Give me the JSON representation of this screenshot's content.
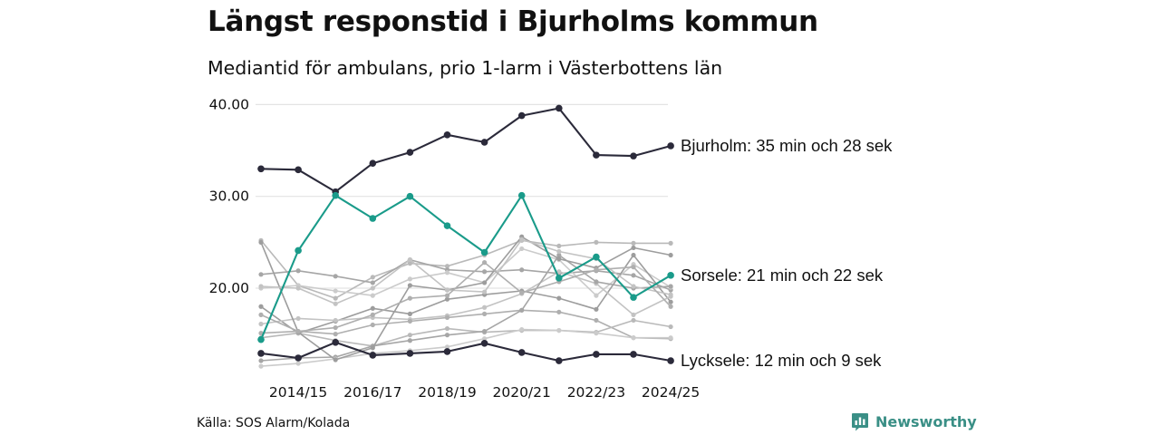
{
  "header": {
    "title": "Längst responstid i Bjurholms kommun",
    "subtitle": "Mediantid för ambulans, prio 1-larm i Västerbottens län"
  },
  "footer": {
    "source": "Källa: SOS Alarm/Kolada",
    "brand": "Newsworthy",
    "brand_icon": "newsworthy-logo-icon"
  },
  "colors": {
    "highlight_dark": "#2b2a3a",
    "highlight_teal": "#1a9b8a",
    "background_lines": [
      "#b9b9b9",
      "#a6a6a6",
      "#cbcbcb",
      "#9d9d9d",
      "#c3c3c3",
      "#afafaf"
    ],
    "grid": "#e3e3e3",
    "brand": "#3a8f86"
  },
  "chart_data": {
    "type": "line",
    "title": "Längst responstid i Bjurholms kommun",
    "subtitle": "Mediantid för ambulans, prio 1-larm i Västerbottens län",
    "xlabel": "",
    "ylabel": "",
    "x": [
      "2013/14",
      "2014/15",
      "2015/16",
      "2016/17",
      "2017/18",
      "2018/19",
      "2019/20",
      "2020/21",
      "2021/22",
      "2022/23",
      "2023/24",
      "2024/25"
    ],
    "x_tick_labels": [
      "2014/15",
      "2016/17",
      "2018/19",
      "2020/21",
      "2022/23",
      "2024/25"
    ],
    "y_ticks": [
      20,
      30,
      40
    ],
    "y_tick_labels": [
      "20.00",
      "30.00",
      "40.00"
    ],
    "ylim": [
      11,
      40.3
    ],
    "grid": true,
    "legend": "direct labels at line ends",
    "highlighted": [
      {
        "name": "Bjurholm",
        "label": "Bjurholm: 35 min och 28 sek",
        "color": "#2b2a3a",
        "values": [
          33.0,
          32.9,
          30.5,
          33.6,
          34.8,
          36.7,
          35.9,
          38.8,
          39.6,
          34.5,
          34.4,
          35.5
        ]
      },
      {
        "name": "Sorsele",
        "label": "Sorsele: 21 min och 22 sek",
        "color": "#1a9b8a",
        "values": [
          14.4,
          24.1,
          30.1,
          27.6,
          30.0,
          26.8,
          23.9,
          30.1,
          21.1,
          23.4,
          19.0,
          21.4
        ]
      },
      {
        "name": "Lycksele",
        "label": "Lycksele: 12 min och 9 sek",
        "color": "#2b2a3a",
        "values": [
          12.9,
          12.4,
          14.1,
          12.7,
          12.9,
          13.1,
          14.0,
          13.0,
          12.1,
          12.8,
          12.8,
          12.1
        ]
      }
    ],
    "other_series": [
      {
        "values": [
          25.2,
          20.3,
          18.9,
          21.2,
          22.7,
          22.4,
          23.6,
          25.2,
          24.6,
          25.0,
          24.9,
          24.9
        ]
      },
      {
        "values": [
          21.5,
          21.9,
          21.3,
          20.6,
          23.1,
          22.0,
          21.8,
          22.0,
          21.6,
          21.9,
          21.4,
          19.8
        ]
      },
      {
        "values": [
          20.0,
          20.3,
          19.7,
          19.2,
          21.0,
          21.7,
          20.6,
          24.3,
          23.1,
          19.2,
          22.6,
          20.1
        ]
      },
      {
        "values": [
          18.0,
          15.1,
          16.4,
          17.8,
          17.2,
          18.8,
          19.3,
          19.7,
          18.9,
          17.7,
          23.6,
          18.5
        ]
      },
      {
        "values": [
          16.1,
          16.7,
          16.5,
          16.8,
          16.6,
          17.0,
          17.9,
          19.4,
          21.8,
          20.5,
          17.1,
          19.1
        ]
      },
      {
        "values": [
          15.1,
          15.3,
          15.0,
          16.0,
          16.4,
          16.8,
          17.2,
          17.6,
          17.4,
          16.5,
          14.6,
          14.5
        ]
      },
      {
        "values": [
          14.6,
          15.1,
          14.3,
          13.7,
          14.9,
          15.6,
          15.2,
          15.4,
          15.4,
          15.2,
          16.5,
          15.8
        ]
      },
      {
        "values": [
          12.1,
          12.4,
          12.5,
          13.7,
          14.3,
          14.9,
          15.3,
          17.6,
          23.6,
          20.7,
          20.0,
          20.2
        ]
      },
      {
        "values": [
          11.5,
          11.8,
          12.3,
          12.9,
          13.2,
          13.6,
          14.5,
          15.5,
          15.4,
          15.1,
          14.6,
          14.6
        ]
      },
      {
        "values": [
          25.0,
          15.2,
          12.2,
          13.5,
          20.3,
          19.8,
          20.6,
          25.6,
          23.2,
          22.2,
          24.4,
          23.6
        ]
      },
      {
        "values": [
          20.2,
          20.0,
          18.3,
          20.0,
          23.1,
          19.8,
          19.6,
          25.3,
          24.0,
          23.2,
          20.2,
          19.3
        ]
      },
      {
        "values": [
          17.1,
          15.3,
          15.7,
          17.1,
          18.9,
          19.2,
          22.8,
          19.5,
          20.7,
          22.0,
          22.3,
          18.0
        ]
      }
    ]
  }
}
